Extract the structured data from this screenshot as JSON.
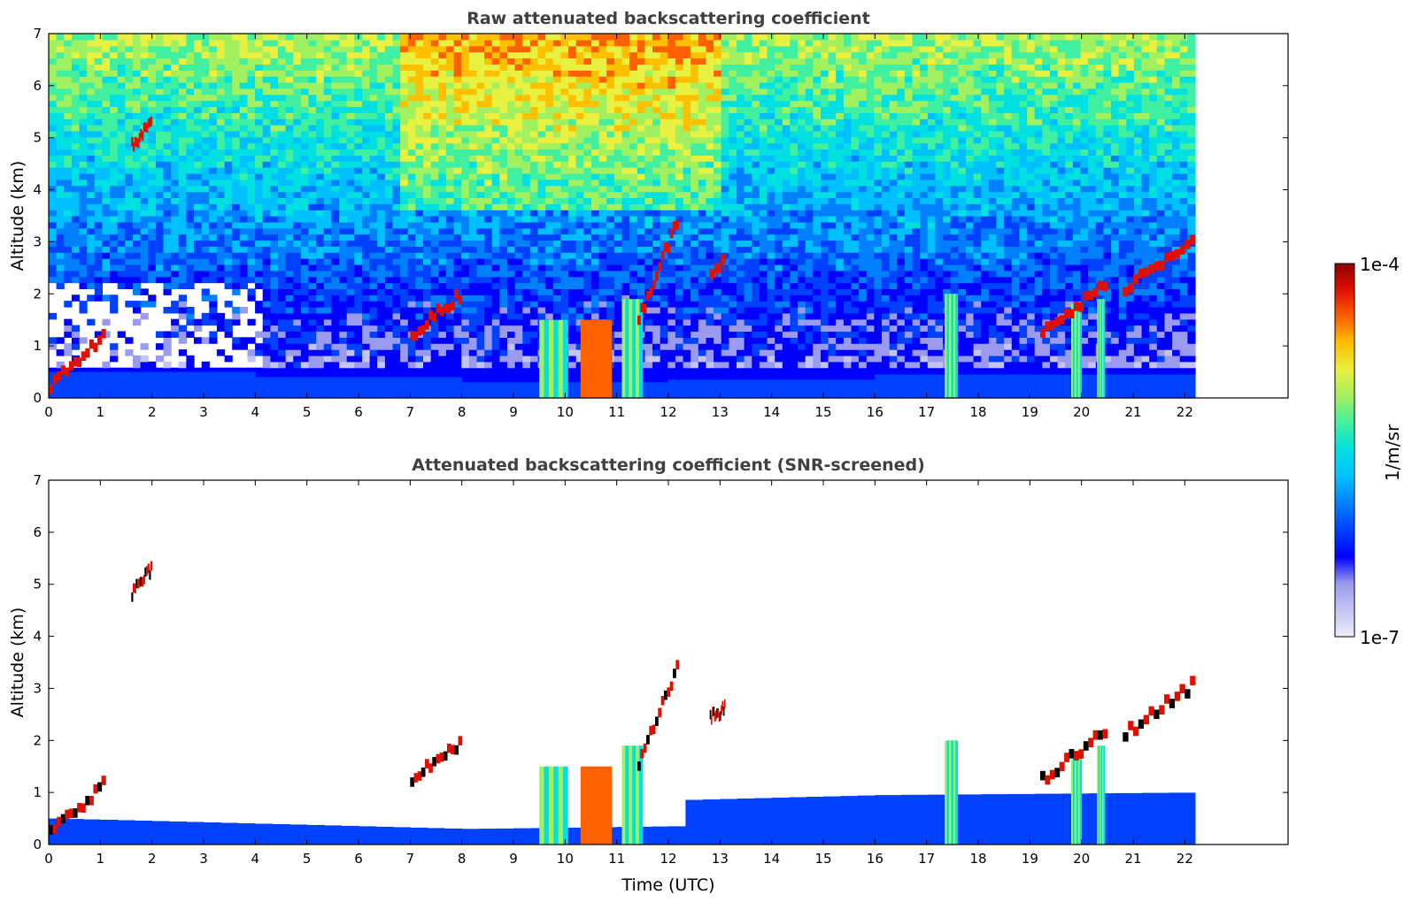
{
  "figure": {
    "xlabel": "Time (UTC)",
    "colorbar": {
      "label": "1/m/sr",
      "max_label": "1e-4",
      "min_label": "1e-7",
      "scale": "log",
      "range": [
        1e-07,
        0.0001
      ],
      "colormap": [
        "#ececf8",
        "#c4c4f2",
        "#9a9aee",
        "#0000ff",
        "#0040ff",
        "#0080ff",
        "#00c0ff",
        "#00e0e0",
        "#40f0a0",
        "#a0f060",
        "#e8f040",
        "#ffc000",
        "#ff6000",
        "#e01000",
        "#8b0000"
      ]
    }
  },
  "chart_data": [
    {
      "type": "heatmap",
      "title": "Raw attenuated backscattering coefficient",
      "xlabel": "",
      "ylabel": "Altitude (km)",
      "xlim": [
        0,
        24
      ],
      "ylim": [
        0,
        7
      ],
      "x_ticks": [
        0,
        1,
        2,
        3,
        4,
        5,
        6,
        7,
        8,
        9,
        10,
        11,
        12,
        13,
        14,
        15,
        16,
        17,
        18,
        19,
        20,
        21,
        22
      ],
      "y_ticks": [
        0,
        1,
        2,
        3,
        4,
        5,
        6,
        7
      ],
      "data_end_time": 22.2,
      "features": {
        "clouds": [
          {
            "t0": 1.6,
            "t1": 2.0,
            "z0": 4.8,
            "z1": 5.3
          },
          {
            "t0": 0.0,
            "t1": 1.1,
            "z0": 0.2,
            "z1": 1.2
          },
          {
            "t0": 7.0,
            "t1": 8.0,
            "z0": 1.2,
            "z1": 2.0
          },
          {
            "t0": 11.4,
            "t1": 12.2,
            "z0": 1.5,
            "z1": 3.5
          },
          {
            "t0": 12.8,
            "t1": 13.1,
            "z0": 2.4,
            "z1": 2.6
          },
          {
            "t0": 19.2,
            "t1": 20.5,
            "z0": 1.2,
            "z1": 2.2
          },
          {
            "t0": 20.8,
            "t1": 22.2,
            "z0": 2.1,
            "z1": 3.1
          }
        ],
        "precipitation": [
          {
            "t0": 9.5,
            "t1": 10.05,
            "z1": 1.5
          },
          {
            "t0": 10.3,
            "t1": 10.9,
            "z1": 1.5
          },
          {
            "t0": 11.1,
            "t1": 11.5,
            "z1": 1.9
          },
          {
            "t0": 17.35,
            "t1": 17.6,
            "z1": 2.0
          },
          {
            "t0": 19.8,
            "t1": 20.0,
            "z1": 1.8
          },
          {
            "t0": 20.3,
            "t1": 20.45,
            "z1": 1.9
          }
        ],
        "boundary_layer_top_km": [
          [
            0,
            0.5
          ],
          [
            4,
            0.4
          ],
          [
            8,
            0.3
          ],
          [
            12,
            0.35
          ],
          [
            16,
            0.45
          ],
          [
            22.2,
            0.5
          ]
        ]
      }
    },
    {
      "type": "heatmap",
      "title": "Attenuated backscattering coefficient (SNR-screened)",
      "xlabel": "Time (UTC)",
      "ylabel": "Altitude (km)",
      "xlim": [
        0,
        24
      ],
      "ylim": [
        0,
        7
      ],
      "x_ticks": [
        0,
        1,
        2,
        3,
        4,
        5,
        6,
        7,
        8,
        9,
        10,
        11,
        12,
        13,
        14,
        15,
        16,
        17,
        18,
        19,
        20,
        21,
        22
      ],
      "y_ticks": [
        0,
        1,
        2,
        3,
        4,
        5,
        6,
        7
      ],
      "data_end_time": 22.2,
      "screened": true
    }
  ]
}
